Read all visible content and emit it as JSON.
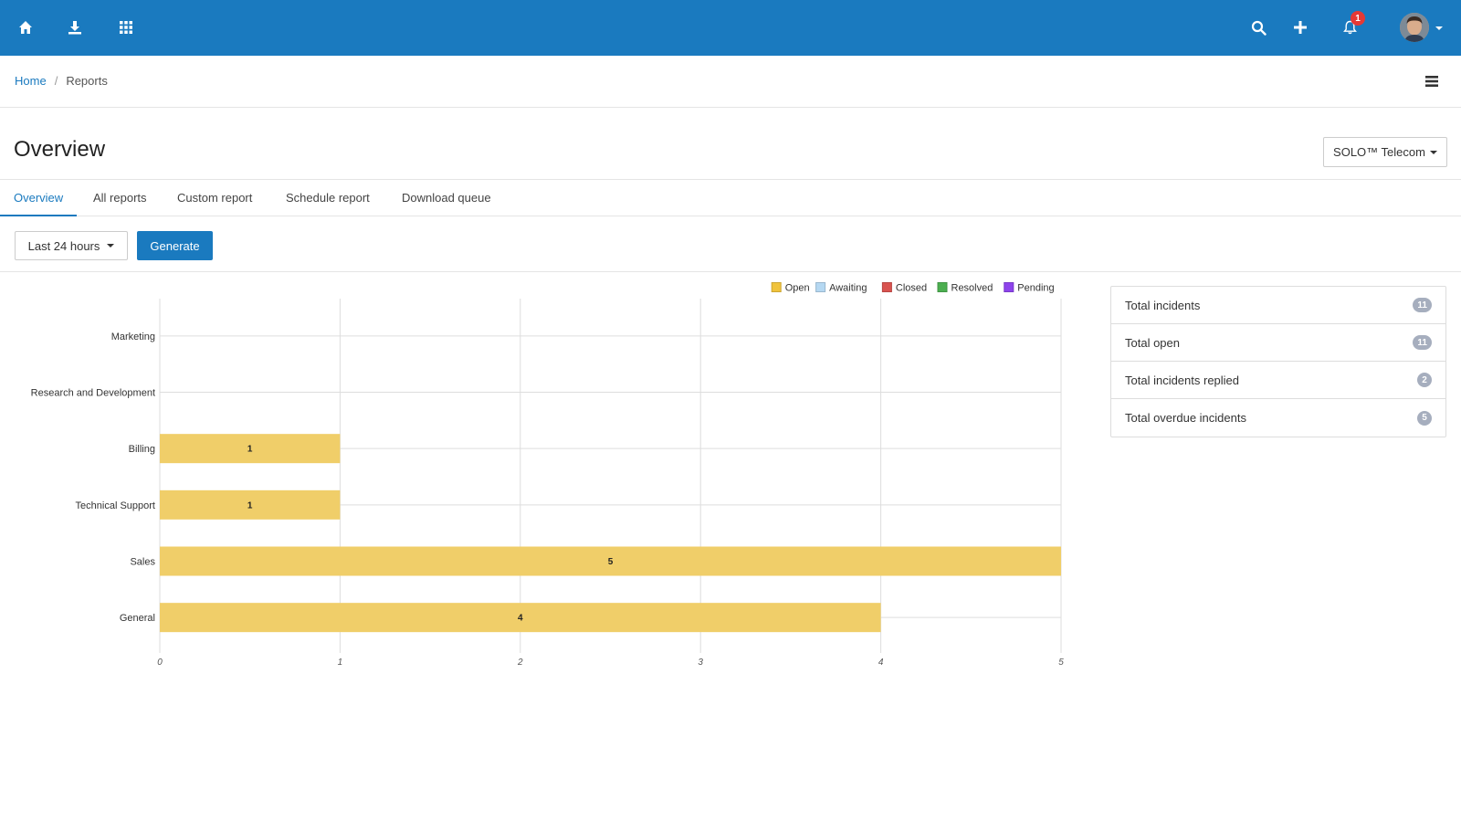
{
  "topbar": {
    "notification_count": "1",
    "colors": {
      "bar": "#1a7abf",
      "badge": "#e53935"
    },
    "icons": [
      "home-icon",
      "download-icon",
      "apps-grid-icon",
      "search-icon",
      "plus-icon",
      "bell-icon",
      "avatar"
    ]
  },
  "breadcrumb": {
    "home": "Home",
    "separator": "/",
    "current": "Reports"
  },
  "page": {
    "title": "Overview",
    "org_selector": "SOLO™ Telecom"
  },
  "tabs": [
    {
      "label": "Overview",
      "active": true
    },
    {
      "label": "All reports",
      "active": false
    },
    {
      "label": "Custom report",
      "active": false
    },
    {
      "label": "Schedule report",
      "active": false
    },
    {
      "label": "Download queue",
      "active": false
    }
  ],
  "filters": {
    "range": "Last 24 hours",
    "generate": "Generate"
  },
  "chart_data": {
    "type": "bar",
    "orientation": "horizontal",
    "stacked": true,
    "categories": [
      "Marketing",
      "Research and Development",
      "Billing",
      "Technical Support",
      "Sales",
      "General"
    ],
    "series": [
      {
        "name": "Open",
        "color": "#f0ce69",
        "legend_color": "#f0c33c",
        "values": [
          0,
          0,
          1,
          1,
          5,
          4
        ]
      },
      {
        "name": "Awaiting",
        "color": "#b5d8f2",
        "legend_color": "#b5d8f2",
        "values": [
          0,
          0,
          0,
          0,
          0,
          0
        ]
      },
      {
        "name": "Closed",
        "color": "#d9534f",
        "legend_color": "#d9534f",
        "values": [
          0,
          0,
          0,
          0,
          0,
          0
        ]
      },
      {
        "name": "Resolved",
        "color": "#4caf50",
        "legend_color": "#4caf50",
        "values": [
          0,
          0,
          0,
          0,
          0,
          0
        ]
      },
      {
        "name": "Pending",
        "color": "#8e44ec",
        "legend_color": "#8e44ec",
        "values": [
          0,
          0,
          0,
          0,
          0,
          0
        ]
      }
    ],
    "data_labels": [
      "",
      "",
      "1",
      "1",
      "5",
      "4"
    ],
    "xlim": [
      0,
      5
    ],
    "xticks": [
      "0",
      "1",
      "2",
      "3",
      "4",
      "5"
    ],
    "grid": true,
    "legend_position": "top-right"
  },
  "stats": [
    {
      "label": "Total incidents",
      "value": "11"
    },
    {
      "label": "Total open",
      "value": "11"
    },
    {
      "label": "Total incidents replied",
      "value": "2"
    },
    {
      "label": "Total overdue incidents",
      "value": "5"
    }
  ]
}
